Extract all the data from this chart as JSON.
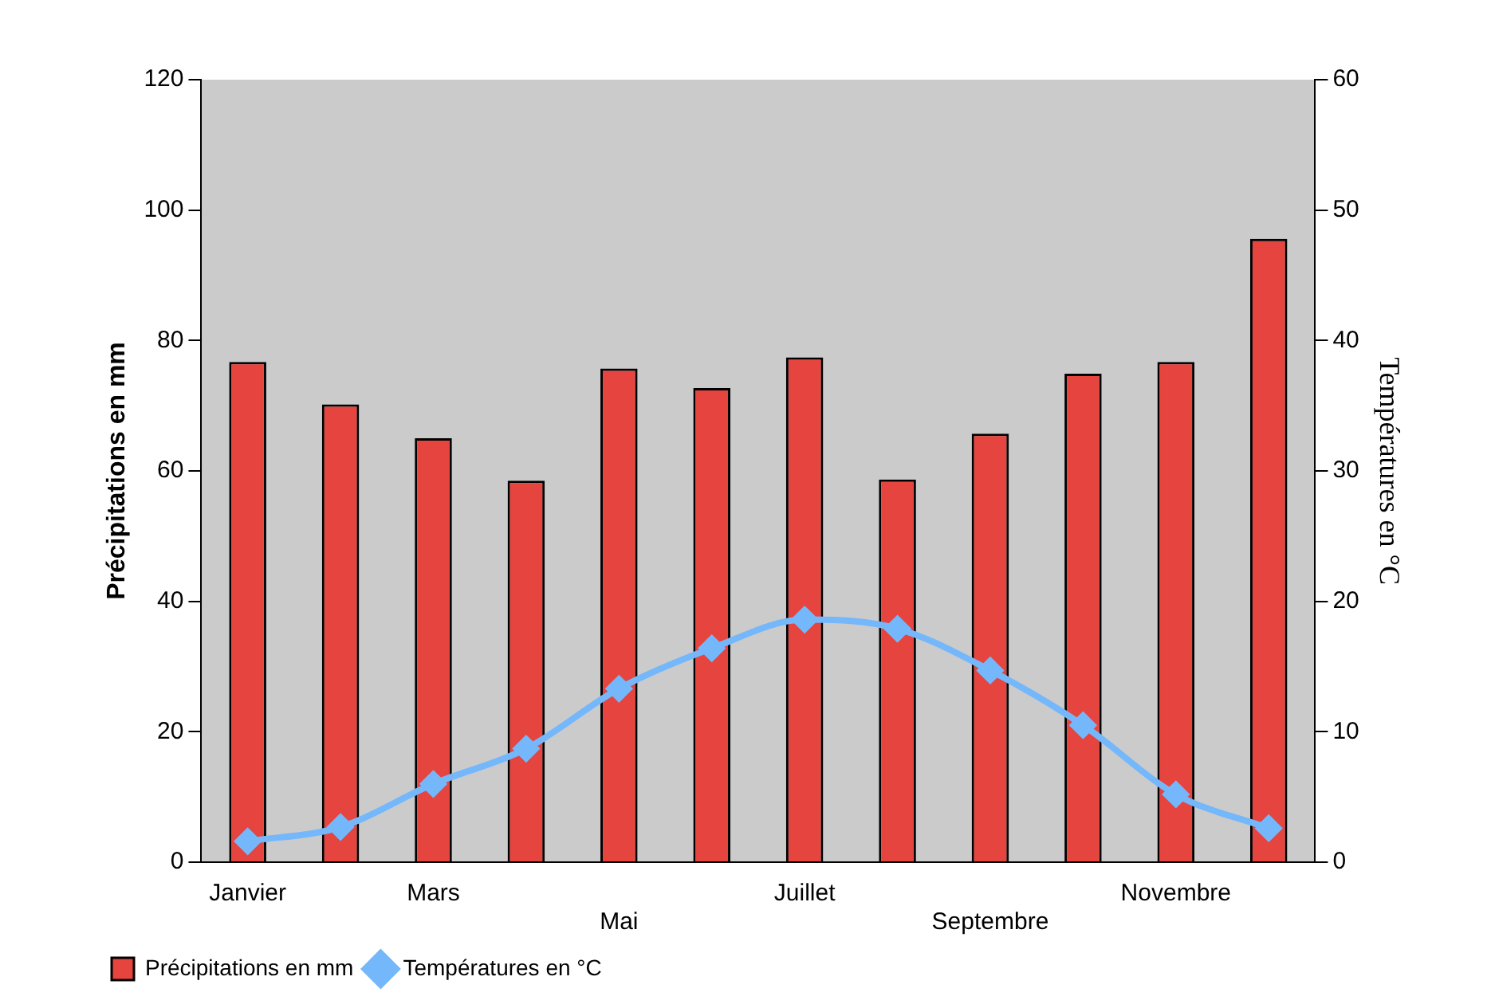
{
  "chart_data": {
    "type": "bar",
    "categories": [
      "Janvier",
      null,
      "Mars",
      null,
      "Mai",
      null,
      "Juillet",
      null,
      "Septembre",
      null,
      "Novembre",
      null
    ],
    "series": [
      {
        "name": "Précipitations en mm",
        "color": "#e5443f",
        "values": [
          76.7,
          70.2,
          65,
          58.5,
          75.7,
          72.7,
          77.4,
          58.7,
          65.7,
          74.9,
          76.7,
          95.6
        ]
      },
      {
        "name": "Températures en °C",
        "type": "line",
        "axis": "y2",
        "color": "#74b8fb",
        "marker": "diamond",
        "values": [
          1.6,
          2.7,
          6.0,
          8.7,
          13.3,
          16.4,
          18.6,
          17.9,
          14.7,
          10.5,
          5.2,
          2.6
        ]
      }
    ],
    "ylabel": "Précipitations en mm",
    "y2label": "Températures en °C",
    "ylim": [
      0,
      120
    ],
    "yticks": [
      0,
      20,
      40,
      60,
      80,
      100,
      120
    ],
    "y2lim": [
      0,
      60
    ],
    "y2ticks": [
      0,
      10,
      20,
      30,
      40,
      50,
      60
    ],
    "grid": false,
    "legend": "bottom left"
  }
}
